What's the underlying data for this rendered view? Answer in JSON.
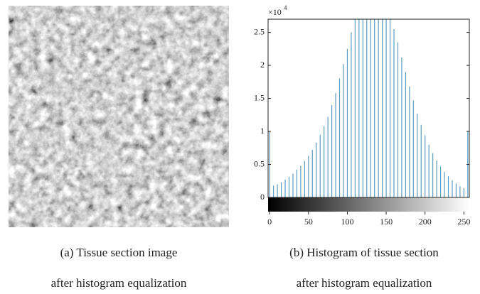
{
  "captions": {
    "a": [
      "(a) Tissue section image",
      "after histogram equalization"
    ],
    "b": [
      "(b) Histogram of tissue section",
      "after histogram equalization"
    ]
  },
  "chart_data": {
    "type": "bar",
    "color": "#5b9bc0",
    "y_multiplier": {
      "base": "×10",
      "exponent": "4"
    },
    "x": [
      0,
      5,
      10,
      15,
      20,
      25,
      30,
      35,
      40,
      45,
      50,
      55,
      60,
      65,
      70,
      75,
      80,
      85,
      90,
      95,
      100,
      105,
      110,
      115,
      120,
      125,
      130,
      135,
      140,
      145,
      150,
      155,
      160,
      165,
      170,
      175,
      180,
      185,
      190,
      195,
      200,
      205,
      210,
      215,
      220,
      225,
      230,
      235,
      240,
      245,
      250,
      255
    ],
    "values": [
      1.0,
      0.18,
      0.2,
      0.23,
      0.27,
      0.31,
      0.36,
      0.42,
      0.48,
      0.55,
      0.63,
      0.72,
      0.83,
      0.95,
      1.08,
      1.22,
      1.4,
      1.58,
      1.8,
      2.02,
      2.25,
      2.5,
      2.7,
      2.7,
      2.7,
      2.7,
      2.7,
      2.7,
      2.7,
      2.7,
      2.7,
      2.7,
      2.55,
      2.35,
      2.12,
      1.9,
      1.68,
      1.47,
      1.27,
      1.1,
      0.94,
      0.8,
      0.67,
      0.56,
      0.47,
      0.39,
      0.32,
      0.26,
      0.21,
      0.17,
      0.14,
      1.0
    ],
    "xlim": [
      -2,
      257
    ],
    "xticks": [
      0,
      50,
      100,
      150,
      200,
      250
    ],
    "ylim": [
      0,
      2.7
    ],
    "yticks": [
      0,
      0.5,
      1,
      1.5,
      2,
      2.5
    ]
  }
}
